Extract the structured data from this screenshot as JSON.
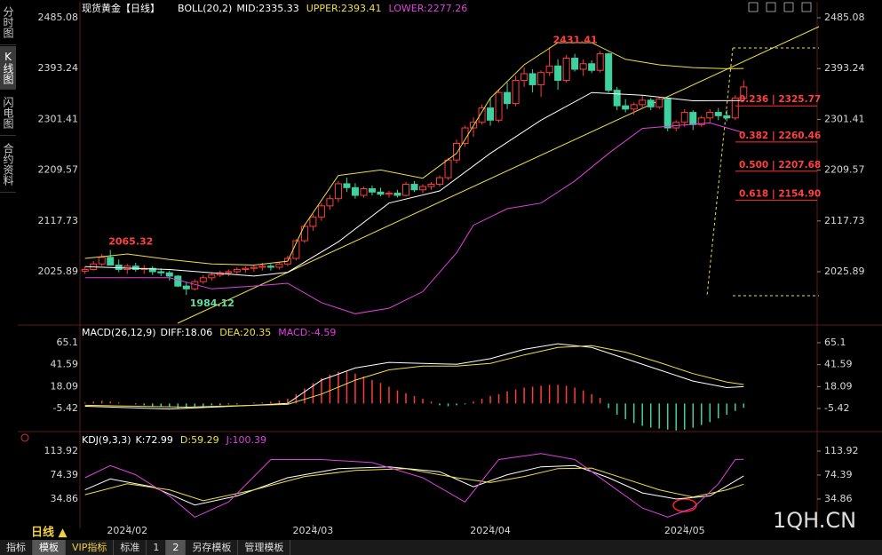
{
  "sidebar": [
    "分时图",
    "K线图",
    "闪电图",
    "合约资料"
  ],
  "period_label": "日线 ▲",
  "toolbar": [
    "指标",
    "模板",
    "VIP指标",
    "标准",
    "1",
    "2",
    "另存模板",
    "管理模板"
  ],
  "watermark": "1QH.CN",
  "chart_data": [
    {
      "type": "candlestick",
      "title": "现货黄金【日线】",
      "indicator": "BOLL(20,2)",
      "up_color": "#ff3c3c",
      "down_color": "#3fd1a0",
      "xlim": [
        -0.6,
        86.7
      ],
      "ylim": [
        1931.2,
        2509.2
      ],
      "yticks": [
        2025.89,
        2117.73,
        2209.57,
        2301.41,
        2393.24,
        2485.08
      ],
      "ohlc": [
        [
          2027,
          2035,
          2022,
          2030
        ],
        [
          2030,
          2045,
          2028,
          2040
        ],
        [
          2040,
          2058,
          2036,
          2052
        ],
        [
          2052,
          2065.32,
          2040,
          2038
        ],
        [
          2038,
          2048,
          2025,
          2030
        ],
        [
          2030,
          2040,
          2022,
          2036
        ],
        [
          2036,
          2042,
          2026,
          2030
        ],
        [
          2030,
          2038,
          2022,
          2032
        ],
        [
          2032,
          2036,
          2020,
          2026
        ],
        [
          2026,
          2032,
          2018,
          2024
        ],
        [
          2024,
          2028,
          2010,
          2018
        ],
        [
          2018,
          2020,
          1998,
          2000
        ],
        [
          2000,
          2008,
          1984.12,
          1995
        ],
        [
          1995,
          2012,
          1992,
          2008
        ],
        [
          2008,
          2020,
          2004,
          2015
        ],
        [
          2015,
          2025,
          2010,
          2020
        ],
        [
          2020,
          2028,
          2016,
          2024
        ],
        [
          2024,
          2030,
          2018,
          2026
        ],
        [
          2026,
          2034,
          2022,
          2030
        ],
        [
          2030,
          2036,
          2024,
          2032
        ],
        [
          2032,
          2038,
          2026,
          2034
        ],
        [
          2034,
          2042,
          2028,
          2036
        ],
        [
          2036,
          2040,
          2028,
          2034
        ],
        [
          2034,
          2044,
          2030,
          2040
        ],
        [
          2040,
          2055,
          2036,
          2050
        ],
        [
          2050,
          2085,
          2046,
          2082
        ],
        [
          2082,
          2112,
          2078,
          2108
        ],
        [
          2108,
          2130,
          2100,
          2125
        ],
        [
          2125,
          2150,
          2118,
          2145
        ],
        [
          2145,
          2165,
          2138,
          2158
        ],
        [
          2158,
          2190,
          2152,
          2185
        ],
        [
          2185,
          2196,
          2170,
          2178
        ],
        [
          2178,
          2186,
          2158,
          2164
        ],
        [
          2164,
          2180,
          2160,
          2176
        ],
        [
          2176,
          2182,
          2164,
          2170
        ],
        [
          2170,
          2178,
          2162,
          2166
        ],
        [
          2166,
          2172,
          2160,
          2168
        ],
        [
          2168,
          2174,
          2160,
          2164
        ],
        [
          2164,
          2188,
          2162,
          2184
        ],
        [
          2184,
          2190,
          2170,
          2174
        ],
        [
          2174,
          2184,
          2168,
          2180
        ],
        [
          2180,
          2188,
          2174,
          2184
        ],
        [
          2184,
          2200,
          2180,
          2196
        ],
        [
          2196,
          2232,
          2192,
          2228
        ],
        [
          2228,
          2265,
          2222,
          2258
        ],
        [
          2258,
          2290,
          2252,
          2286
        ],
        [
          2286,
          2305,
          2270,
          2296
        ],
        [
          2296,
          2328,
          2292,
          2322
        ],
        [
          2322,
          2340,
          2290,
          2300
        ],
        [
          2300,
          2355,
          2296,
          2350
        ],
        [
          2350,
          2368,
          2320,
          2330
        ],
        [
          2330,
          2380,
          2325,
          2372
        ],
        [
          2372,
          2395,
          2360,
          2384
        ],
        [
          2384,
          2392,
          2350,
          2364
        ],
        [
          2364,
          2390,
          2342,
          2386
        ],
        [
          2386,
          2431.41,
          2380,
          2398
        ],
        [
          2398,
          2410,
          2355,
          2372
        ],
        [
          2372,
          2418,
          2368,
          2412
        ],
        [
          2412,
          2420,
          2388,
          2392
        ],
        [
          2392,
          2410,
          2380,
          2402
        ],
        [
          2402,
          2408,
          2385,
          2390
        ],
        [
          2390,
          2425,
          2386,
          2420
        ],
        [
          2420,
          2422,
          2350,
          2354
        ],
        [
          2354,
          2360,
          2318,
          2326
        ],
        [
          2326,
          2338,
          2314,
          2320
        ],
        [
          2320,
          2332,
          2310,
          2328
        ],
        [
          2328,
          2345,
          2320,
          2336
        ],
        [
          2336,
          2340,
          2318,
          2324
        ],
        [
          2324,
          2342,
          2320,
          2338
        ],
        [
          2338,
          2340,
          2280,
          2286
        ],
        [
          2286,
          2300,
          2280,
          2296
        ],
        [
          2296,
          2320,
          2288,
          2314
        ],
        [
          2314,
          2318,
          2282,
          2292
        ],
        [
          2292,
          2308,
          2288,
          2304
        ],
        [
          2304,
          2320,
          2296,
          2314
        ],
        [
          2314,
          2322,
          2300,
          2308
        ],
        [
          2308,
          2318,
          2298,
          2304
        ],
        [
          2304,
          2345,
          2300,
          2340
        ],
        [
          2340,
          2372,
          2336,
          2360
        ]
      ],
      "series": [
        {
          "name": "MID:2335.33",
          "color": "#ffffff",
          "x": [
            0,
            10,
            20,
            24,
            30,
            36,
            42,
            48,
            54,
            60,
            66,
            72,
            78
          ],
          "values": [
            2035,
            2030,
            2018,
            2025,
            2080,
            2150,
            2172,
            2240,
            2300,
            2350,
            2345,
            2335,
            2335.33
          ]
        },
        {
          "name": "UPPER:2393.41",
          "color": "#f0e040",
          "x": [
            0,
            5,
            10,
            15,
            20,
            24,
            26,
            30,
            35,
            40,
            44,
            48,
            52,
            56,
            60,
            64,
            68,
            72,
            76,
            78
          ],
          "values": [
            2050,
            2058,
            2048,
            2040,
            2038,
            2045,
            2110,
            2200,
            2210,
            2195,
            2240,
            2340,
            2400,
            2440,
            2440,
            2410,
            2400,
            2395,
            2393,
            2393.41
          ]
        },
        {
          "name": "LOWER:2277.26",
          "color": "#e040e0",
          "x": [
            0,
            10,
            15,
            20,
            24,
            28,
            32,
            36,
            40,
            44,
            46,
            50,
            54,
            58,
            62,
            66,
            70,
            74,
            78
          ],
          "values": [
            2015,
            2015,
            1995,
            2000,
            2005,
            1970,
            1950,
            1960,
            1990,
            2060,
            2110,
            2140,
            2150,
            2190,
            2240,
            2285,
            2290,
            2295,
            2277.26
          ]
        }
      ],
      "annotations": [
        {
          "value": 2325.77,
          "label": "0.236 | 2325.77"
        },
        {
          "value": 2260.46,
          "label": "0.382 | 2260.46"
        },
        {
          "value": 2207.68,
          "label": "0.500 | 2207.68"
        },
        {
          "value": 2154.9,
          "label": "0.618 | 2154.90"
        }
      ]
    },
    {
      "type": "macd",
      "title": "MACD(26,12,9)",
      "xlim": [
        -0.6,
        86.7
      ],
      "ylim": [
        -29.2,
        82.2
      ],
      "yticks": [
        -5.42,
        18.09,
        41.59,
        65.1
      ],
      "histogram": {
        "name": "MACD:-4.59",
        "color": "#e040e0",
        "up_color": "#ff3c3c",
        "down_color": "#3fd1a0",
        "values": [
          1,
          2,
          3,
          2,
          1,
          0,
          -1,
          -2,
          -3,
          -3,
          -4,
          -5,
          -5,
          -4,
          -3,
          -2,
          -2,
          -1,
          -1,
          0,
          1,
          1,
          2,
          3,
          5,
          10,
          16,
          22,
          27,
          31,
          34,
          34,
          32,
          29,
          25,
          22,
          18,
          14,
          11,
          8,
          5,
          2,
          -2,
          -3,
          -2,
          -1,
          2,
          5,
          8,
          10,
          13,
          15,
          17,
          18,
          19,
          20,
          20,
          19,
          17,
          14,
          10,
          6,
          -5,
          -12,
          -17,
          -21,
          -24,
          -26,
          -27,
          -28,
          -29,
          -28,
          -26,
          -23,
          -20,
          -16,
          -12,
          -8,
          -4.59
        ]
      },
      "series": [
        {
          "name": "DIFF:18.06",
          "color": "#ffffff",
          "x": [
            0,
            10,
            20,
            24,
            28,
            32,
            36,
            40,
            44,
            48,
            52,
            56,
            60,
            64,
            68,
            72,
            76,
            78
          ],
          "values": [
            -3,
            -6,
            -2,
            0,
            25,
            38,
            44,
            43,
            42,
            48,
            58,
            64,
            60,
            48,
            36,
            24,
            17,
            18.06
          ]
        },
        {
          "name": "DEA:20.35",
          "color": "#f0e040",
          "x": [
            0,
            12,
            24,
            28,
            32,
            36,
            40,
            44,
            48,
            52,
            56,
            60,
            64,
            68,
            72,
            76,
            78
          ],
          "values": [
            -2,
            -4,
            -1,
            10,
            25,
            36,
            40,
            40,
            43,
            52,
            60,
            62,
            55,
            44,
            32,
            23,
            20.35
          ]
        }
      ]
    },
    {
      "type": "kdj",
      "title": "KDJ(9,3,3)",
      "xlim": [
        -0.6,
        86.7
      ],
      "ylim": [
        -13.5,
        143.2
      ],
      "yticks": [
        34.86,
        74.39,
        113.92
      ],
      "xticks": [
        {
          "value": 5,
          "label": "2024/02"
        },
        {
          "value": 27,
          "label": "2024/03"
        },
        {
          "value": 48,
          "label": "2024/04"
        },
        {
          "value": 71,
          "label": "2024/05"
        }
      ],
      "series": [
        {
          "name": "K:72.99",
          "color": "#ffffff",
          "x": [
            0,
            3,
            8,
            13,
            18,
            24,
            30,
            36,
            42,
            46,
            50,
            54,
            58,
            62,
            66,
            70,
            74,
            78
          ],
          "values": [
            50,
            68,
            55,
            25,
            40,
            70,
            85,
            88,
            80,
            55,
            75,
            88,
            90,
            70,
            45,
            35,
            40,
            72.99
          ]
        },
        {
          "name": "D:59.29",
          "color": "#f0e040",
          "x": [
            0,
            5,
            10,
            14,
            20,
            26,
            32,
            38,
            44,
            48,
            52,
            56,
            60,
            64,
            68,
            72,
            76,
            78
          ],
          "values": [
            42,
            60,
            50,
            32,
            50,
            72,
            82,
            85,
            70,
            62,
            72,
            85,
            86,
            68,
            50,
            38,
            50,
            59.29
          ]
        },
        {
          "name": "J:100.39",
          "color": "#e040e0",
          "x": [
            0,
            3,
            6,
            10,
            13,
            17,
            22,
            28,
            34,
            40,
            45,
            49,
            54,
            58,
            62,
            66,
            69,
            72,
            75,
            77,
            78
          ],
          "values": [
            70,
            90,
            75,
            40,
            5,
            30,
            100,
            100,
            95,
            70,
            30,
            100,
            110,
            100,
            60,
            20,
            5,
            20,
            60,
            100,
            100.39
          ]
        }
      ]
    }
  ]
}
